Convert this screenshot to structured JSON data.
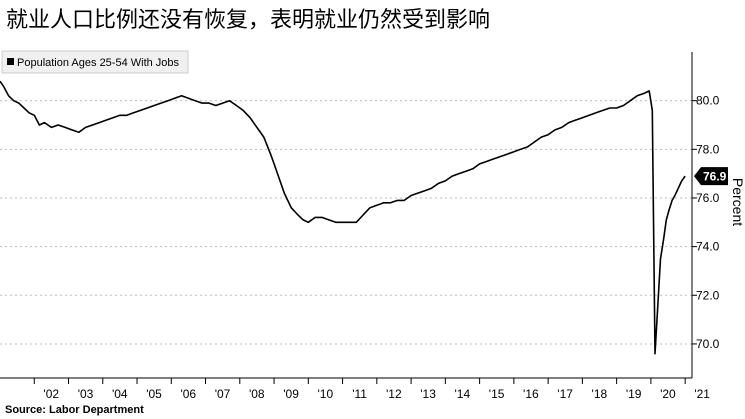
{
  "title": "就业人口比例还没有恢复，表明就业仍然受到影响",
  "source": "Source: Labor Department",
  "chart_data": {
    "type": "line",
    "legend": "Population Ages 25-54 With Jobs",
    "legend_placement": "top-left",
    "ylabel": "Percent",
    "y_axis_side": "right",
    "ylim": [
      68.6,
      82.0
    ],
    "yticks": [
      70.0,
      72.0,
      74.0,
      76.0,
      78.0,
      80.0
    ],
    "ytick_labels": [
      "70.0",
      "72.0",
      "74.0",
      "76.0",
      "78.0",
      "80.0"
    ],
    "xlim": [
      2001.0,
      2021.2
    ],
    "xticks": [
      2002,
      2003,
      2004,
      2005,
      2006,
      2007,
      2008,
      2009,
      2010,
      2011,
      2012,
      2013,
      2014,
      2015,
      2016,
      2017,
      2018,
      2019,
      2020,
      2021
    ],
    "xtick_labels": [
      "'02",
      "'03",
      "'04",
      "'05",
      "'06",
      "'07",
      "'08",
      "'09",
      "'10",
      "'11",
      "'12",
      "'13",
      "'14",
      "'15",
      "'16",
      "'17",
      "'18",
      "'19",
      "'20",
      "'21"
    ],
    "grid": "horizontal dashed",
    "last_value_label": "76.9",
    "last_value_color": "#000000",
    "line_color": "#000000",
    "series": [
      {
        "name": "Population Ages 25-54 With Jobs",
        "x": [
          2001.0,
          2001.1,
          2001.25,
          2001.4,
          2001.55,
          2001.7,
          2001.85,
          2002.0,
          2002.15,
          2002.3,
          2002.5,
          2002.7,
          2002.9,
          2003.1,
          2003.3,
          2003.5,
          2003.7,
          2003.9,
          2004.1,
          2004.3,
          2004.5,
          2004.7,
          2004.9,
          2005.1,
          2005.3,
          2005.5,
          2005.7,
          2005.9,
          2006.1,
          2006.3,
          2006.5,
          2006.7,
          2006.9,
          2007.1,
          2007.3,
          2007.5,
          2007.7,
          2007.9,
          2008.1,
          2008.3,
          2008.5,
          2008.7,
          2008.9,
          2009.0,
          2009.15,
          2009.3,
          2009.5,
          2009.7,
          2009.85,
          2010.0,
          2010.2,
          2010.4,
          2010.6,
          2010.8,
          2011.0,
          2011.2,
          2011.4,
          2011.6,
          2011.8,
          2012.0,
          2012.2,
          2012.4,
          2012.6,
          2012.8,
          2013.0,
          2013.2,
          2013.4,
          2013.6,
          2013.8,
          2014.0,
          2014.2,
          2014.4,
          2014.6,
          2014.8,
          2015.0,
          2015.2,
          2015.4,
          2015.6,
          2015.8,
          2016.0,
          2016.2,
          2016.4,
          2016.6,
          2016.8,
          2017.0,
          2017.2,
          2017.4,
          2017.6,
          2017.8,
          2018.0,
          2018.2,
          2018.4,
          2018.6,
          2018.8,
          2019.0,
          2019.2,
          2019.4,
          2019.6,
          2019.8,
          2019.95,
          2020.04,
          2020.12,
          2020.2,
          2020.28,
          2020.37,
          2020.45,
          2020.53,
          2020.62,
          2020.7,
          2020.8,
          2020.9,
          2021.0
        ],
        "values": [
          80.8,
          80.6,
          80.2,
          80.0,
          79.9,
          79.7,
          79.5,
          79.4,
          79.0,
          79.1,
          78.9,
          79.0,
          78.9,
          78.8,
          78.7,
          78.9,
          79.0,
          79.1,
          79.2,
          79.3,
          79.4,
          79.4,
          79.5,
          79.6,
          79.7,
          79.8,
          79.9,
          80.0,
          80.1,
          80.2,
          80.1,
          80.0,
          79.9,
          79.9,
          79.8,
          79.9,
          80.0,
          79.8,
          79.6,
          79.3,
          78.9,
          78.5,
          77.8,
          77.4,
          76.8,
          76.2,
          75.6,
          75.3,
          75.1,
          75.0,
          75.2,
          75.2,
          75.1,
          75.0,
          75.0,
          75.0,
          75.0,
          75.3,
          75.6,
          75.7,
          75.8,
          75.8,
          75.9,
          75.9,
          76.1,
          76.2,
          76.3,
          76.4,
          76.6,
          76.7,
          76.9,
          77.0,
          77.1,
          77.2,
          77.4,
          77.5,
          77.6,
          77.7,
          77.8,
          77.9,
          78.0,
          78.1,
          78.3,
          78.5,
          78.6,
          78.8,
          78.9,
          79.1,
          79.2,
          79.3,
          79.4,
          79.5,
          79.6,
          79.7,
          79.7,
          79.8,
          80.0,
          80.2,
          80.3,
          80.4,
          79.6,
          69.6,
          71.5,
          73.5,
          74.3,
          75.1,
          75.5,
          75.9,
          76.1,
          76.4,
          76.7,
          76.9
        ]
      }
    ]
  }
}
